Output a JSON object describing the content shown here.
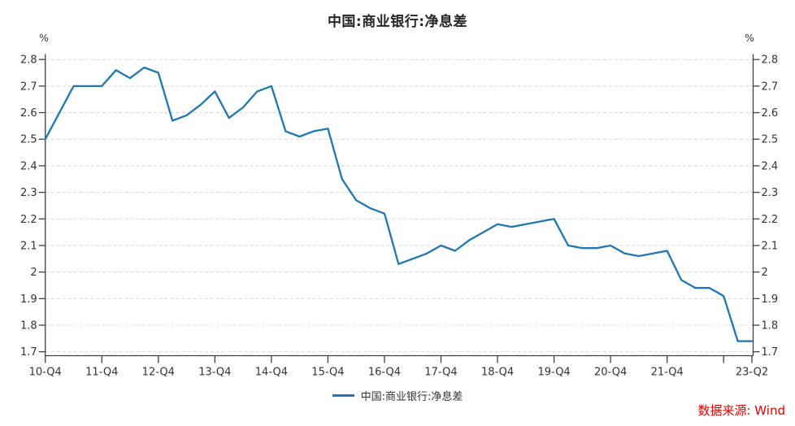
{
  "title": "中国:商业银行:净息差",
  "unit_left": "%",
  "unit_right": "%",
  "legend": {
    "label": "中国:商业银行:净息差"
  },
  "source": {
    "text": "数据来源: Wind"
  },
  "colors": {
    "line": "#2077b4",
    "grid": "#d9d9d9",
    "axis": "#404040",
    "tick_label": "#333333",
    "title": "#262626",
    "source": "#e60000",
    "background": "#ffffff"
  },
  "chart_data": {
    "type": "line",
    "title": "中国:商业银行:净息差",
    "xlabel": "",
    "ylabel": "%",
    "ylim": [
      1.7,
      2.8
    ],
    "grid": "dashed-horizontal",
    "legend_position": "bottom-center",
    "y_ticks": [
      {
        "value": 2.8,
        "label": "2.8"
      },
      {
        "value": 2.7,
        "label": "2.7"
      },
      {
        "value": 2.6,
        "label": "2.6"
      },
      {
        "value": 2.5,
        "label": "2.5"
      },
      {
        "value": 2.4,
        "label": "2.4"
      },
      {
        "value": 2.3,
        "label": "2.3"
      },
      {
        "value": 2.2,
        "label": "2.2"
      },
      {
        "value": 2.1,
        "label": "2.1"
      },
      {
        "value": 2.0,
        "label": "2"
      },
      {
        "value": 1.9,
        "label": "1.9"
      },
      {
        "value": 1.8,
        "label": "1.8"
      },
      {
        "value": 1.7,
        "label": "1.7"
      }
    ],
    "x_ticks": [
      {
        "i": 0,
        "label": "10-Q4"
      },
      {
        "i": 4,
        "label": "11-Q4"
      },
      {
        "i": 8,
        "label": "12-Q4"
      },
      {
        "i": 12,
        "label": "13-Q4"
      },
      {
        "i": 16,
        "label": "14-Q4"
      },
      {
        "i": 20,
        "label": "15-Q4"
      },
      {
        "i": 24,
        "label": "16-Q4"
      },
      {
        "i": 28,
        "label": "17-Q4"
      },
      {
        "i": 32,
        "label": "18-Q4"
      },
      {
        "i": 36,
        "label": "19-Q4"
      },
      {
        "i": 40,
        "label": "20-Q4"
      },
      {
        "i": 44,
        "label": "21-Q4"
      },
      {
        "i": 48,
        "label": ""
      },
      {
        "i": 50,
        "label": "23-Q2"
      }
    ],
    "series": [
      {
        "name": "中国:商业银行:净息差",
        "x": [
          "10-Q4",
          "11-Q1",
          "11-Q2",
          "11-Q3",
          "11-Q4",
          "12-Q1",
          "12-Q2",
          "12-Q3",
          "12-Q4",
          "13-Q1",
          "13-Q2",
          "13-Q3",
          "13-Q4",
          "14-Q1",
          "14-Q2",
          "14-Q3",
          "14-Q4",
          "15-Q1",
          "15-Q2",
          "15-Q3",
          "15-Q4",
          "16-Q1",
          "16-Q2",
          "16-Q3",
          "16-Q4",
          "17-Q1",
          "17-Q2",
          "17-Q3",
          "17-Q4",
          "18-Q1",
          "18-Q2",
          "18-Q3",
          "18-Q4",
          "19-Q1",
          "19-Q2",
          "19-Q3",
          "19-Q4",
          "20-Q1",
          "20-Q2",
          "20-Q3",
          "20-Q4",
          "21-Q1",
          "21-Q2",
          "21-Q3",
          "21-Q4",
          "22-Q1",
          "22-Q2",
          "22-Q3",
          "22-Q4",
          "23-Q1",
          "23-Q2"
        ],
        "values": [
          2.5,
          2.6,
          2.7,
          2.7,
          2.7,
          2.76,
          2.73,
          2.77,
          2.75,
          2.57,
          2.59,
          2.63,
          2.68,
          2.58,
          2.62,
          2.68,
          2.7,
          2.53,
          2.51,
          2.53,
          2.54,
          2.35,
          2.27,
          2.24,
          2.22,
          2.03,
          2.05,
          2.07,
          2.1,
          2.08,
          2.12,
          2.15,
          2.18,
          2.17,
          2.18,
          2.19,
          2.2,
          2.1,
          2.09,
          2.09,
          2.1,
          2.07,
          2.06,
          2.07,
          2.08,
          1.97,
          1.94,
          1.94,
          1.91,
          1.74,
          1.74
        ]
      }
    ]
  }
}
